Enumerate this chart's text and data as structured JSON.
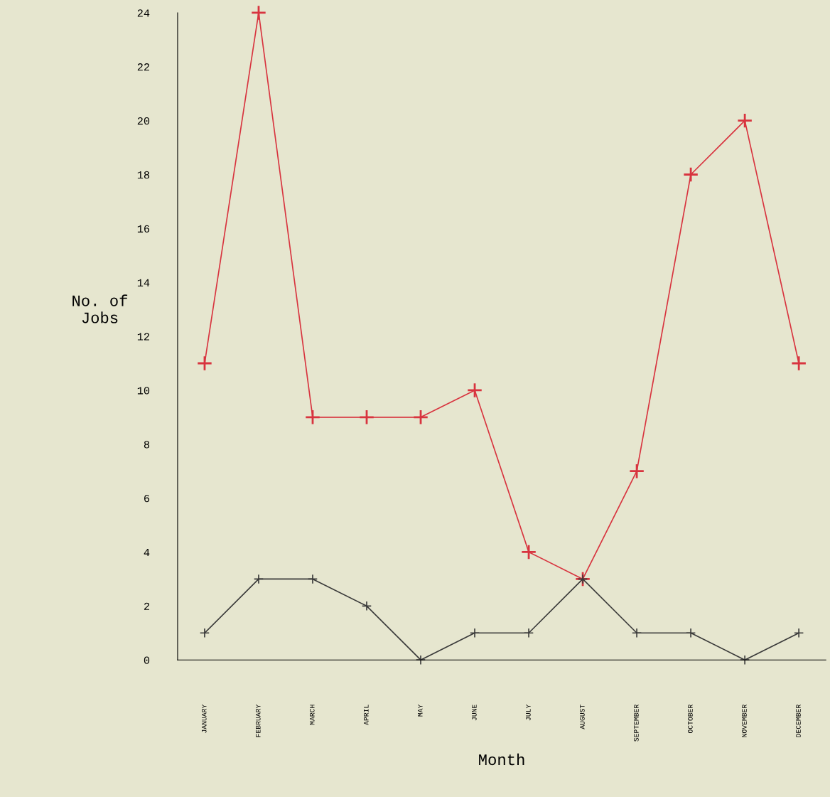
{
  "chart_data": {
    "type": "line",
    "xlabel": "Month",
    "ylabel": "No. of\nJobs",
    "categories": [
      "JANUARY",
      "FEBRUARY",
      "MARCH",
      "APRIL",
      "MAY",
      "JUNE",
      "JULY",
      "AUGUST",
      "SEPTEMBER",
      "OCTOBER",
      "NOVEMBER",
      "DECEMBER"
    ],
    "series": [
      {
        "color": "#d8343f",
        "values": [
          11,
          24,
          9,
          9,
          9,
          10,
          4,
          3,
          7,
          18,
          20,
          11
        ]
      },
      {
        "color": "#3a3a3a",
        "values": [
          1,
          3,
          3,
          2,
          0,
          1,
          1,
          3,
          1,
          1,
          0,
          1
        ]
      }
    ],
    "ylim": [
      0,
      24
    ],
    "yticks": [
      0,
      2,
      4,
      6,
      8,
      10,
      12,
      14,
      16,
      18,
      20,
      22,
      24
    ],
    "marker": "cross",
    "line_style": "solid",
    "grid": false
  }
}
